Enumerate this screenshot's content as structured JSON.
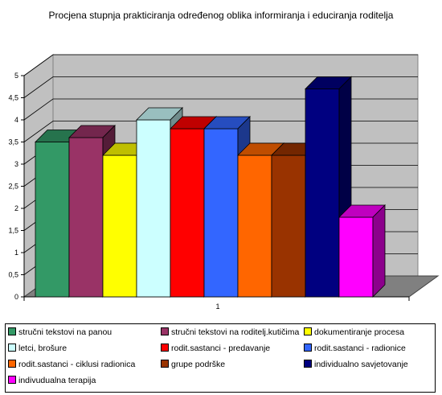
{
  "chart_data": {
    "type": "bar",
    "title": "Procjena stupnja prakticiranja određenog oblika informiranja i educiranja roditelja",
    "categories": [
      "1"
    ],
    "ylim": [
      0,
      5
    ],
    "yticks": [
      "0",
      "0,5",
      "1",
      "1,5",
      "2",
      "2,5",
      "3",
      "3,5",
      "4",
      "4,5",
      "5"
    ],
    "grid": true,
    "legend_position": "bottom",
    "series": [
      {
        "name": "stručni tekstovi na panou",
        "values": [
          3.5
        ],
        "color": "#339966"
      },
      {
        "name": "stručni tekstovi na roditelj.kutičima",
        "values": [
          3.6
        ],
        "color": "#993366"
      },
      {
        "name": "dokumentiranje procesa",
        "values": [
          3.2
        ],
        "color": "#ffff00"
      },
      {
        "name": "letci, brošure",
        "values": [
          4.0
        ],
        "color": "#ccffff"
      },
      {
        "name": "rodit.sastanci - predavanje",
        "values": [
          3.8
        ],
        "color": "#ff0000"
      },
      {
        "name": "rodit.sastanci - radionice",
        "values": [
          3.8
        ],
        "color": "#3366ff"
      },
      {
        "name": "rodit.sastanci - ciklusi radionica",
        "values": [
          3.2
        ],
        "color": "#ff6600"
      },
      {
        "name": "grupe podrške",
        "values": [
          3.2
        ],
        "color": "#993300"
      },
      {
        "name": "individualno savjetovanje",
        "values": [
          4.7
        ],
        "color": "#000080"
      },
      {
        "name": "indivudualna terapija",
        "values": [
          1.8
        ],
        "color": "#ff00ff"
      }
    ]
  }
}
